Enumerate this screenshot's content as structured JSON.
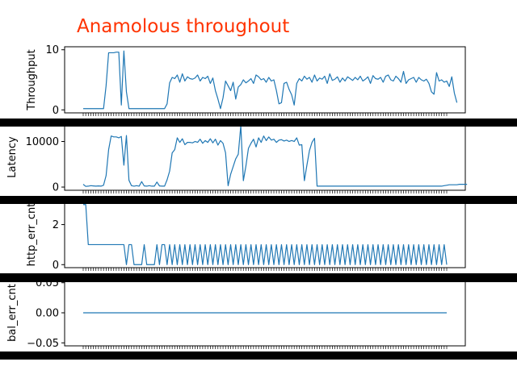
{
  "title": "Anamolous throughout",
  "colors": {
    "title": "#ff3300",
    "line": "#1f77b4",
    "axes": "#000000",
    "band": "#000000",
    "background": "#ffffff"
  },
  "chart_data": [
    {
      "type": "line",
      "ylabel": "Throughput",
      "ylim": [
        -0.5,
        10.5
      ],
      "yticks": [
        "0",
        "10"
      ],
      "ytick_values": [
        0,
        10
      ],
      "n_points": 144,
      "series": [
        {
          "values": [
            0.2,
            0.2,
            0.2,
            0.2,
            0.2,
            0.2,
            0.2,
            0.2,
            0.2,
            4,
            9.5,
            9.5,
            9.5,
            9.6,
            9.6,
            0.8,
            9.8,
            3,
            0.2,
            0.2,
            0.2,
            0.2,
            0.2,
            0.2,
            0.2,
            0.2,
            0.2,
            0.2,
            0.2,
            0.2,
            0.2,
            0.2,
            0.2,
            1,
            4.5,
            5.4,
            5.2,
            5.8,
            4.6,
            6,
            4.8,
            5.5,
            5.2,
            5.1,
            5.3,
            5.8,
            4.8,
            5.4,
            5.2,
            5.6,
            4.4,
            5.3,
            3.2,
            1.8,
            0.2,
            2,
            4.8,
            4,
            3.2,
            4.6,
            1.8,
            3.8,
            4.2,
            5,
            4.5,
            4.8,
            5.2,
            4.4,
            5.8,
            5.5,
            5,
            5.2,
            4.6,
            5.4,
            4.8,
            5,
            3.2,
            1,
            1.2,
            4.4,
            4.6,
            3.4,
            2.5,
            0.8,
            4.4,
            5.2,
            4.8,
            5.6,
            5.1,
            5.4,
            4.6,
            5.8,
            4.8,
            5.3,
            5.1,
            5.6,
            4.4,
            6,
            4.9,
            5.1,
            5.5,
            4.6,
            5.3,
            4.8,
            5.5,
            5.2,
            4.9,
            5.4,
            5,
            5.6,
            4.8,
            5.1,
            5.5,
            4.4,
            5.7,
            5.2,
            5.1,
            5.4,
            4.6,
            5.6,
            5.8,
            5,
            4.8,
            5.6,
            5.2,
            4.6,
            6.4,
            4.4,
            5,
            5.2,
            5.4,
            4.6,
            5.4,
            5,
            4.8,
            5.1,
            4.4,
            3,
            2.6,
            6.2,
            4.8,
            5,
            4.6,
            4.8,
            3.9,
            5.5,
            2.8,
            1.2
          ]
        }
      ]
    },
    {
      "type": "line",
      "ylabel": "Latency",
      "ylim": [
        -700,
        13800
      ],
      "yticks": [
        "0",
        "10000"
      ],
      "ytick_values": [
        0,
        10000
      ],
      "n_points": 144,
      "series": [
        {
          "values": [
            600,
            150,
            200,
            300,
            250,
            200,
            250,
            200,
            400,
            2500,
            8200,
            11200,
            11000,
            11000,
            10800,
            11100,
            4800,
            11300,
            1500,
            300,
            200,
            300,
            200,
            1200,
            250,
            200,
            300,
            200,
            200,
            1100,
            250,
            200,
            200,
            1600,
            3500,
            7500,
            8200,
            10800,
            9800,
            10600,
            9300,
            9800,
            9800,
            9700,
            10000,
            9800,
            10500,
            9600,
            10200,
            9800,
            10600,
            9700,
            10500,
            9200,
            10200,
            9600,
            7500,
            300,
            2800,
            4500,
            6200,
            7200,
            13500,
            1400,
            4600,
            8500,
            9600,
            10500,
            8800,
            10800,
            9800,
            11200,
            10200,
            11000,
            10300,
            10500,
            9800,
            10300,
            10400,
            10100,
            10300,
            10000,
            10200,
            10000,
            10800,
            9200,
            9300,
            1400,
            4800,
            8000,
            9800,
            10700,
            200,
            200,
            200,
            200,
            200,
            200,
            200,
            200,
            200,
            200,
            200,
            200,
            200,
            200,
            200,
            200,
            200,
            200,
            200,
            200,
            200,
            200,
            200,
            200,
            200,
            200,
            200,
            200,
            200,
            200,
            200,
            200,
            200,
            200,
            200,
            200,
            200,
            200,
            200,
            200,
            200,
            200,
            200,
            200,
            200,
            200,
            200,
            200,
            200,
            200,
            300,
            400,
            500,
            500,
            500,
            500,
            600,
            600,
            600,
            600
          ]
        }
      ]
    },
    {
      "type": "line",
      "ylabel": "http_err_cnt",
      "ylim": [
        -0.15,
        3.15
      ],
      "yticks": [
        "0",
        "2"
      ],
      "ytick_values": [
        0,
        2
      ],
      "n_points": 144,
      "series": [
        {
          "values": [
            3,
            3,
            1,
            1,
            1,
            1,
            1,
            1,
            1,
            1,
            1,
            1,
            1,
            1,
            1,
            1,
            1,
            0,
            1,
            1,
            0,
            0,
            0,
            0,
            1,
            0,
            0,
            0,
            0,
            1,
            0,
            1,
            1,
            0,
            1,
            0,
            1,
            0,
            1,
            0,
            1,
            0,
            1,
            0,
            1,
            0,
            1,
            0,
            1,
            0,
            1,
            0,
            1,
            0,
            1,
            0,
            1,
            0,
            1,
            0,
            1,
            0,
            1,
            0,
            1,
            0,
            1,
            0,
            1,
            0,
            1,
            0,
            1,
            0,
            1,
            0,
            1,
            0,
            1,
            0,
            1,
            0,
            1,
            0,
            1,
            0,
            1,
            0,
            1,
            0,
            1,
            0,
            1,
            0,
            1,
            0,
            1,
            0,
            1,
            0,
            1,
            0,
            1,
            0,
            1,
            0,
            1,
            0,
            1,
            0,
            1,
            0,
            1,
            0,
            1,
            0,
            1,
            0,
            1,
            0,
            1,
            0,
            1,
            0,
            1,
            0,
            1,
            0,
            1,
            0,
            1,
            0,
            1,
            0,
            1,
            0,
            1,
            0,
            1,
            0,
            1,
            0,
            1,
            0
          ]
        }
      ]
    },
    {
      "type": "line",
      "ylabel": "bal_err_cnt",
      "ylim": [
        -0.055,
        0.055
      ],
      "yticks": [
        "−0.05",
        "0.00",
        "0.05"
      ],
      "ytick_values": [
        -0.05,
        0,
        0.05
      ],
      "n_points": 144,
      "series": [
        {
          "values": [
            0,
            0,
            0,
            0,
            0,
            0,
            0,
            0,
            0,
            0,
            0,
            0,
            0,
            0,
            0,
            0,
            0,
            0,
            0,
            0,
            0,
            0,
            0,
            0,
            0,
            0,
            0,
            0,
            0,
            0,
            0,
            0,
            0,
            0,
            0,
            0,
            0,
            0,
            0,
            0,
            0,
            0,
            0,
            0,
            0,
            0,
            0,
            0,
            0,
            0,
            0,
            0,
            0,
            0,
            0,
            0,
            0,
            0,
            0,
            0,
            0,
            0,
            0,
            0,
            0,
            0,
            0,
            0,
            0,
            0,
            0,
            0,
            0,
            0,
            0,
            0,
            0,
            0,
            0,
            0,
            0,
            0,
            0,
            0,
            0,
            0,
            0,
            0,
            0,
            0,
            0,
            0,
            0,
            0,
            0,
            0,
            0,
            0,
            0,
            0,
            0,
            0,
            0,
            0,
            0,
            0,
            0,
            0,
            0,
            0,
            0,
            0,
            0,
            0,
            0,
            0,
            0,
            0,
            0,
            0,
            0,
            0,
            0,
            0,
            0,
            0,
            0,
            0,
            0,
            0,
            0,
            0,
            0,
            0,
            0,
            0,
            0,
            0,
            0,
            0,
            0,
            0,
            0,
            0
          ]
        }
      ]
    }
  ]
}
